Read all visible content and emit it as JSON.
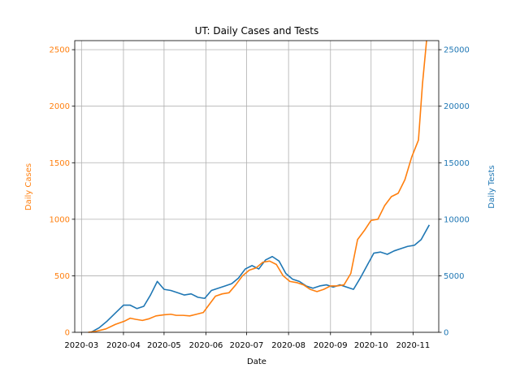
{
  "chart_data": {
    "type": "line",
    "title": "UT: Daily Cases and Tests",
    "xlabel": "Date",
    "ylabel_left": "Daily Cases",
    "ylabel_right": "Daily Tests",
    "xlim": [
      "2020-02-25",
      "2020-11-20"
    ],
    "ylim_left": [
      0,
      2580
    ],
    "ylim_right": [
      0,
      25800
    ],
    "x_ticks": [
      "2020-03",
      "2020-04",
      "2020-05",
      "2020-06",
      "2020-07",
      "2020-08",
      "2020-09",
      "2020-10",
      "2020-11"
    ],
    "y_ticks_left": [
      0,
      500,
      1000,
      1500,
      2000,
      2500
    ],
    "y_ticks_right": [
      0,
      5000,
      10000,
      15000,
      20000,
      25000
    ],
    "grid": true,
    "colors": {
      "cases": "#ff7f0e",
      "tests": "#1f77b4",
      "grid": "#b0b0b0"
    },
    "series": [
      {
        "axis": "left",
        "style": "line",
        "points": [
          [
            "2020-03-06",
            0
          ],
          [
            "2020-03-12",
            10
          ],
          [
            "2020-03-19",
            30
          ],
          [
            "2020-03-26",
            70
          ],
          [
            "2020-04-02",
            100
          ],
          [
            "2020-04-06",
            125
          ],
          [
            "2020-04-10",
            115
          ],
          [
            "2020-04-15",
            105
          ],
          [
            "2020-04-20",
            120
          ],
          [
            "2020-04-25",
            145
          ],
          [
            "2020-05-01",
            155
          ],
          [
            "2020-05-06",
            160
          ],
          [
            "2020-05-10",
            150
          ],
          [
            "2020-05-15",
            150
          ],
          [
            "2020-05-20",
            145
          ],
          [
            "2020-05-25",
            160
          ],
          [
            "2020-05-30",
            175
          ],
          [
            "2020-06-03",
            240
          ],
          [
            "2020-06-08",
            320
          ],
          [
            "2020-06-13",
            340
          ],
          [
            "2020-06-18",
            350
          ],
          [
            "2020-06-23",
            420
          ],
          [
            "2020-06-28",
            500
          ],
          [
            "2020-07-03",
            550
          ],
          [
            "2020-07-08",
            570
          ],
          [
            "2020-07-13",
            620
          ],
          [
            "2020-07-18",
            630
          ],
          [
            "2020-07-23",
            600
          ],
          [
            "2020-07-28",
            500
          ],
          [
            "2020-08-02",
            450
          ],
          [
            "2020-08-07",
            440
          ],
          [
            "2020-08-12",
            420
          ],
          [
            "2020-08-17",
            380
          ],
          [
            "2020-08-22",
            360
          ],
          [
            "2020-08-27",
            380
          ],
          [
            "2020-09-01",
            410
          ],
          [
            "2020-09-06",
            410
          ],
          [
            "2020-09-11",
            420
          ],
          [
            "2020-09-16",
            520
          ],
          [
            "2020-09-21",
            820
          ],
          [
            "2020-09-26",
            900
          ],
          [
            "2020-10-01",
            990
          ],
          [
            "2020-10-06",
            1000
          ],
          [
            "2020-10-11",
            1120
          ],
          [
            "2020-10-16",
            1200
          ],
          [
            "2020-10-21",
            1230
          ],
          [
            "2020-10-26",
            1350
          ],
          [
            "2020-10-31",
            1550
          ],
          [
            "2020-11-05",
            1700
          ],
          [
            "2020-11-08",
            2200
          ],
          [
            "2020-11-11",
            2600
          ]
        ]
      },
      {
        "axis": "right",
        "style": "line",
        "points": [
          [
            "2020-03-08",
            0
          ],
          [
            "2020-03-14",
            400
          ],
          [
            "2020-03-20",
            1000
          ],
          [
            "2020-03-26",
            1700
          ],
          [
            "2020-04-01",
            2400
          ],
          [
            "2020-04-06",
            2400
          ],
          [
            "2020-04-11",
            2100
          ],
          [
            "2020-04-16",
            2300
          ],
          [
            "2020-04-21",
            3300
          ],
          [
            "2020-04-26",
            4500
          ],
          [
            "2020-05-01",
            3800
          ],
          [
            "2020-05-06",
            3700
          ],
          [
            "2020-05-11",
            3500
          ],
          [
            "2020-05-16",
            3300
          ],
          [
            "2020-05-21",
            3400
          ],
          [
            "2020-05-26",
            3100
          ],
          [
            "2020-05-31",
            3000
          ],
          [
            "2020-06-05",
            3700
          ],
          [
            "2020-06-10",
            3900
          ],
          [
            "2020-06-15",
            4100
          ],
          [
            "2020-06-20",
            4300
          ],
          [
            "2020-06-25",
            4800
          ],
          [
            "2020-06-30",
            5600
          ],
          [
            "2020-07-05",
            5900
          ],
          [
            "2020-07-10",
            5600
          ],
          [
            "2020-07-15",
            6400
          ],
          [
            "2020-07-20",
            6700
          ],
          [
            "2020-07-25",
            6300
          ],
          [
            "2020-07-30",
            5200
          ],
          [
            "2020-08-04",
            4700
          ],
          [
            "2020-08-09",
            4500
          ],
          [
            "2020-08-14",
            4100
          ],
          [
            "2020-08-19",
            3900
          ],
          [
            "2020-08-24",
            4100
          ],
          [
            "2020-08-29",
            4200
          ],
          [
            "2020-09-03",
            4000
          ],
          [
            "2020-09-08",
            4200
          ],
          [
            "2020-09-13",
            4000
          ],
          [
            "2020-09-18",
            3800
          ],
          [
            "2020-09-23",
            4800
          ],
          [
            "2020-09-28",
            5900
          ],
          [
            "2020-10-03",
            7000
          ],
          [
            "2020-10-08",
            7100
          ],
          [
            "2020-10-13",
            6900
          ],
          [
            "2020-10-18",
            7200
          ],
          [
            "2020-10-23",
            7400
          ],
          [
            "2020-10-28",
            7600
          ],
          [
            "2020-11-02",
            7700
          ],
          [
            "2020-11-07",
            8200
          ],
          [
            "2020-11-13",
            9500
          ]
        ]
      }
    ]
  }
}
